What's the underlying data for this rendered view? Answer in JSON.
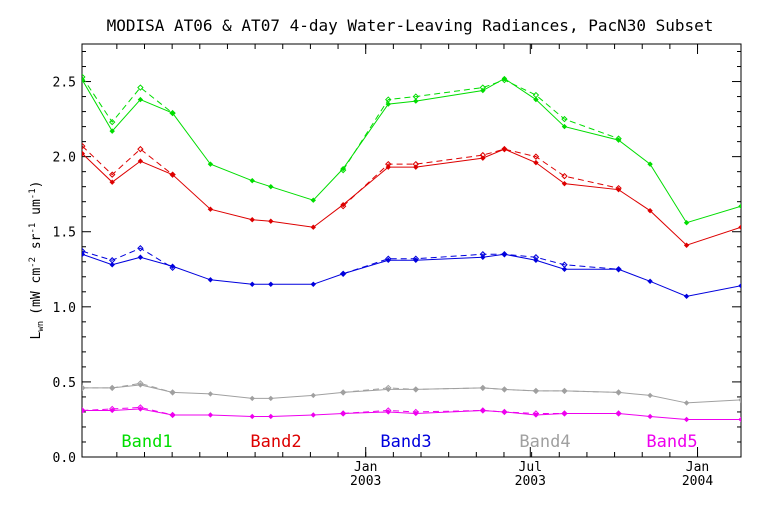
{
  "chart_data": {
    "type": "line",
    "title": "MODISA AT06 & AT07 4-day Water-Leaving Radiances, PacN30 Subset",
    "ylabel": "L_wn (mW cm^-2 sr^-1 um^-1)",
    "ylabel_main": "L",
    "ylabel_sub": "wn",
    "ylabel_rest": "(mW cm",
    "ylabel_sup1": "-2",
    "ylabel_mid": " sr",
    "ylabel_sup2": "-1",
    "ylabel_end": " um",
    "ylabel_sup3": "-1",
    "ylabel_close": ")",
    "ylim": [
      0.0,
      2.75
    ],
    "xlim": [
      2002.145,
      2004.131
    ],
    "yticks": [
      "0.0",
      "0.5",
      "1.0",
      "1.5",
      "2.0",
      "2.5"
    ],
    "xticks": [
      {
        "pos": 2003.0,
        "month": "Jan",
        "year": "2003"
      },
      {
        "pos": 2003.496,
        "month": "Jul",
        "year": "2003"
      },
      {
        "pos": 2004.0,
        "month": "Jan",
        "year": "2004"
      }
    ],
    "x": [
      2002.146,
      2002.236,
      2002.321,
      2002.418,
      2002.532,
      2002.658,
      2002.714,
      2002.842,
      2002.932,
      2003.068,
      2003.151,
      2003.353,
      2003.418,
      2003.513,
      2003.599,
      2003.762,
      2003.857,
      2003.967,
      2004.131
    ],
    "series": [
      {
        "name": "Band1",
        "color": "#00dd00",
        "solid": [
          2.51,
          2.17,
          2.38,
          2.29,
          1.95,
          1.84,
          1.8,
          1.71,
          1.92,
          2.35,
          2.37,
          2.44,
          2.52,
          2.38,
          2.2,
          2.11,
          1.95,
          1.56,
          1.67
        ],
        "dashed": [
          2.53,
          2.23,
          2.46,
          2.29,
          null,
          null,
          null,
          null,
          1.91,
          2.38,
          2.4,
          2.46,
          2.51,
          2.41,
          2.25,
          2.12,
          null,
          null,
          null
        ]
      },
      {
        "name": "Band2",
        "color": "#dd0000",
        "solid": [
          2.02,
          1.83,
          1.97,
          1.88,
          1.65,
          1.58,
          1.57,
          1.53,
          1.68,
          1.93,
          1.93,
          1.99,
          2.05,
          1.96,
          1.82,
          1.78,
          1.64,
          1.41,
          1.53
        ],
        "dashed": [
          2.07,
          1.88,
          2.05,
          1.88,
          null,
          null,
          null,
          null,
          1.67,
          1.95,
          1.95,
          2.01,
          2.05,
          2.0,
          1.87,
          1.79,
          null,
          null,
          null
        ]
      },
      {
        "name": "Band3",
        "color": "#0000dd",
        "solid": [
          1.35,
          1.28,
          1.33,
          1.27,
          1.18,
          1.15,
          1.15,
          1.15,
          1.22,
          1.31,
          1.31,
          1.33,
          1.35,
          1.31,
          1.25,
          1.25,
          1.17,
          1.07,
          1.14
        ],
        "dashed": [
          1.37,
          1.31,
          1.39,
          1.26,
          null,
          null,
          null,
          null,
          1.22,
          1.32,
          1.32,
          1.35,
          1.35,
          1.33,
          1.28,
          1.25,
          null,
          null,
          null
        ]
      },
      {
        "name": "Band4",
        "color": "#a0a0a0",
        "solid": [
          0.46,
          0.46,
          0.48,
          0.43,
          0.42,
          0.39,
          0.39,
          0.41,
          0.43,
          0.45,
          0.45,
          0.46,
          0.45,
          0.44,
          0.44,
          0.43,
          0.41,
          0.36,
          0.38
        ],
        "dashed": [
          0.46,
          0.46,
          0.49,
          0.43,
          null,
          null,
          null,
          null,
          0.43,
          0.46,
          0.45,
          0.46,
          0.45,
          0.44,
          0.44,
          0.43,
          null,
          null,
          null
        ]
      },
      {
        "name": "Band5",
        "color": "#ee00ee",
        "solid": [
          0.31,
          0.31,
          0.32,
          0.28,
          0.28,
          0.27,
          0.27,
          0.28,
          0.29,
          0.3,
          0.29,
          0.31,
          0.3,
          0.28,
          0.29,
          0.29,
          0.27,
          0.25,
          0.25
        ],
        "dashed": [
          0.31,
          0.32,
          0.33,
          0.28,
          null,
          null,
          null,
          null,
          0.29,
          0.31,
          0.3,
          0.31,
          0.3,
          0.29,
          0.29,
          0.29,
          null,
          null,
          null
        ]
      }
    ],
    "grid": false,
    "legend": "bottom, inside plot"
  }
}
